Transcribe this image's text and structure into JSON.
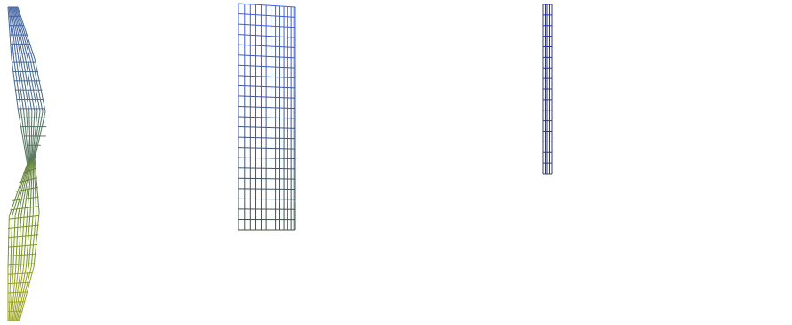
{
  "scene": {
    "description_free": true,
    "grids": [
      {
        "id": "left-twisted-sheet",
        "color_stops": [
          "#3d5fa8",
          "#4a6a8a",
          "#5a7a48",
          "#7a9a20",
          "#a8a820"
        ],
        "top_color": "#3d5fa8",
        "bottom_color": "#a8a820"
      },
      {
        "id": "middle-folded-sheet",
        "left_panel_top_color": "#4060e8",
        "left_panel_bottom_color": "#405040",
        "right_panel_top_color": "#6080ff",
        "right_panel_mid_color": "#e8e8f0",
        "right_panel_bottom_color": "#f8f860"
      },
      {
        "id": "right-curved-sheet",
        "top_color": "#2030c0",
        "mid_color": "#707070",
        "bottom_color": "#c8c820"
      }
    ]
  }
}
